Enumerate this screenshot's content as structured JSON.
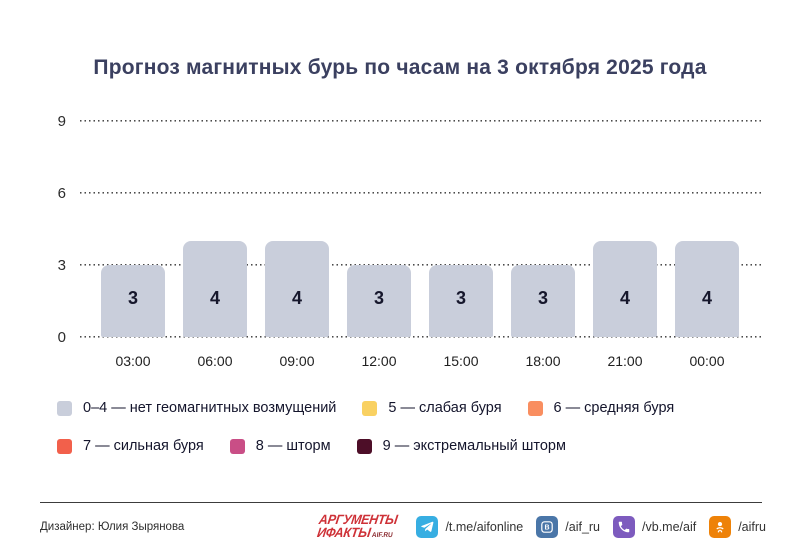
{
  "title": "Прогноз магнитных бурь по часам на 3 октября 2025 года",
  "chart_data": {
    "type": "bar",
    "categories": [
      "03:00",
      "06:00",
      "09:00",
      "12:00",
      "15:00",
      "18:00",
      "21:00",
      "00:00"
    ],
    "values": [
      3,
      4,
      4,
      3,
      3,
      3,
      4,
      4
    ],
    "title": "Прогноз магнитных бурь по часам на 3 октября 2025 года",
    "xlabel": "",
    "ylabel": "",
    "ylim": [
      0,
      9
    ],
    "y_ticks": [
      9,
      6,
      3,
      0
    ],
    "bar_color": "#c9cedb",
    "bar_label_color": "#16172c",
    "grid": "horizontal-dotted",
    "legend_position": "bottom"
  },
  "legend": {
    "items": [
      {
        "label": "0–4 — нет геомагнитных возмущений",
        "color": "#c9cedb"
      },
      {
        "label": "5 — слабая буря",
        "color": "#f9d162"
      },
      {
        "label": "6 — средняя буря",
        "color": "#f98e60"
      },
      {
        "label": "7 — сильная буря",
        "color": "#f2604b"
      },
      {
        "label": "8 — шторм",
        "color": "#c94e86"
      },
      {
        "label": "9 — экстремальный шторм",
        "color": "#4d0e28"
      }
    ]
  },
  "footer": {
    "designer": "Дизайнер: Юлия Зырянова",
    "logo": {
      "line1": "АРГУМЕНТЫ",
      "line2": "ИФАКТЫ",
      "suffix": "AIF.RU"
    },
    "socials": [
      {
        "icon": "telegram-icon",
        "label": "/t.me/aifonline",
        "color": "#37aee2"
      },
      {
        "icon": "vk-icon",
        "label": "/aif_ru",
        "color": "#4a76a8"
      },
      {
        "icon": "viber-icon",
        "label": "/vb.me/aif",
        "color": "#7d5bbe"
      },
      {
        "icon": "ok-icon",
        "label": "/aifru",
        "color": "#ee8208"
      }
    ]
  },
  "colors": {
    "title": "#3b4060",
    "background": "#ffffff",
    "gridline": "#4a4a4a",
    "separator": "#3c3c3c",
    "logo_red": "#ce3137"
  }
}
